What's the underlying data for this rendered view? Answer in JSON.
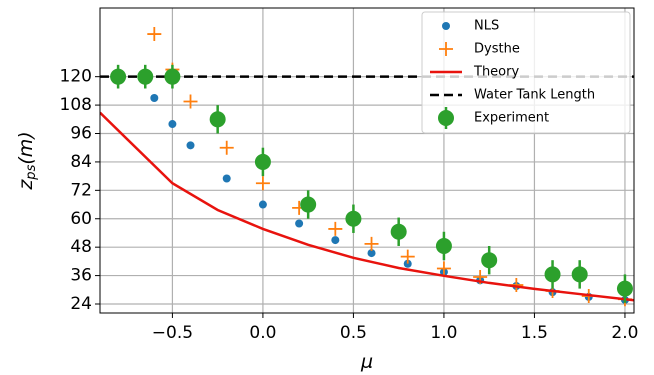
{
  "chart_data": {
    "type": "mixed",
    "xlabel": "μ",
    "ylabel": {
      "base": "z",
      "sub": "ps",
      "unit": "(m)"
    },
    "xlim": [
      -0.9,
      2.05
    ],
    "ylim": [
      20.2,
      149
    ],
    "xticks": [
      {
        "value": -0.5,
        "label": "−0.5"
      },
      {
        "value": 0,
        "label": "0.0"
      },
      0.5,
      {
        "value": 1,
        "label": "1.0"
      },
      1.5,
      {
        "value": 2,
        "label": "2.0"
      }
    ],
    "yticks": [
      24,
      36,
      48,
      60,
      72,
      84,
      96,
      108,
      120
    ],
    "grid": true,
    "legend": "upper right",
    "series": [
      {
        "name": "NLS",
        "kind": "scatter",
        "color": "#1f77b4",
        "x": [
          -0.6,
          -0.5,
          -0.4,
          -0.2,
          0.0,
          0.2,
          0.4,
          0.6,
          0.8,
          1.0,
          1.2,
          1.4,
          1.6,
          1.8,
          2.0
        ],
        "values": [
          111,
          100,
          91,
          77,
          66,
          58,
          51,
          45.5,
          41,
          37.5,
          34,
          31.6,
          29,
          27,
          25.7
        ]
      },
      {
        "name": "Dysthe",
        "kind": "plus",
        "color": "#ff7f0e",
        "x": [
          -0.6,
          -0.5,
          -0.4,
          -0.2,
          0.0,
          0.2,
          0.4,
          0.6,
          0.8,
          1.0,
          1.2,
          1.4,
          1.6,
          1.8,
          2.0
        ],
        "values": [
          138,
          123,
          109.5,
          90,
          75,
          64.6,
          55.7,
          49.4,
          44,
          39,
          35.4,
          32,
          29.5,
          27.4,
          26
        ]
      },
      {
        "name": "Theory",
        "kind": "line",
        "color": "#e8130e",
        "x": [
          -0.9,
          -0.5,
          -0.25,
          0.0,
          0.25,
          0.5,
          0.75,
          1.0,
          1.25,
          1.5,
          1.75,
          2.05
        ],
        "values": [
          104.8,
          75,
          63.7,
          55.7,
          49,
          43.5,
          39.2,
          35.9,
          32.9,
          30.4,
          28.2,
          25.6
        ]
      },
      {
        "name": "Water Tank Length",
        "kind": "hline",
        "color": "#000000",
        "values": [
          120
        ]
      },
      {
        "name": "Experiment",
        "kind": "errorbar",
        "color": "#2ca02c",
        "x": [
          -0.8,
          -0.65,
          -0.5,
          -0.25,
          0.0,
          0.25,
          0.5,
          0.75,
          1.0,
          1.25,
          1.6,
          1.75,
          2.0
        ],
        "values": [
          120,
          120,
          120,
          102,
          84,
          66,
          60,
          54.5,
          48.5,
          42.5,
          36.5,
          36.5,
          30.5
        ],
        "errors": [
          5,
          5,
          5,
          6,
          6,
          6,
          6,
          6,
          6,
          6,
          6,
          6,
          6
        ]
      }
    ]
  }
}
